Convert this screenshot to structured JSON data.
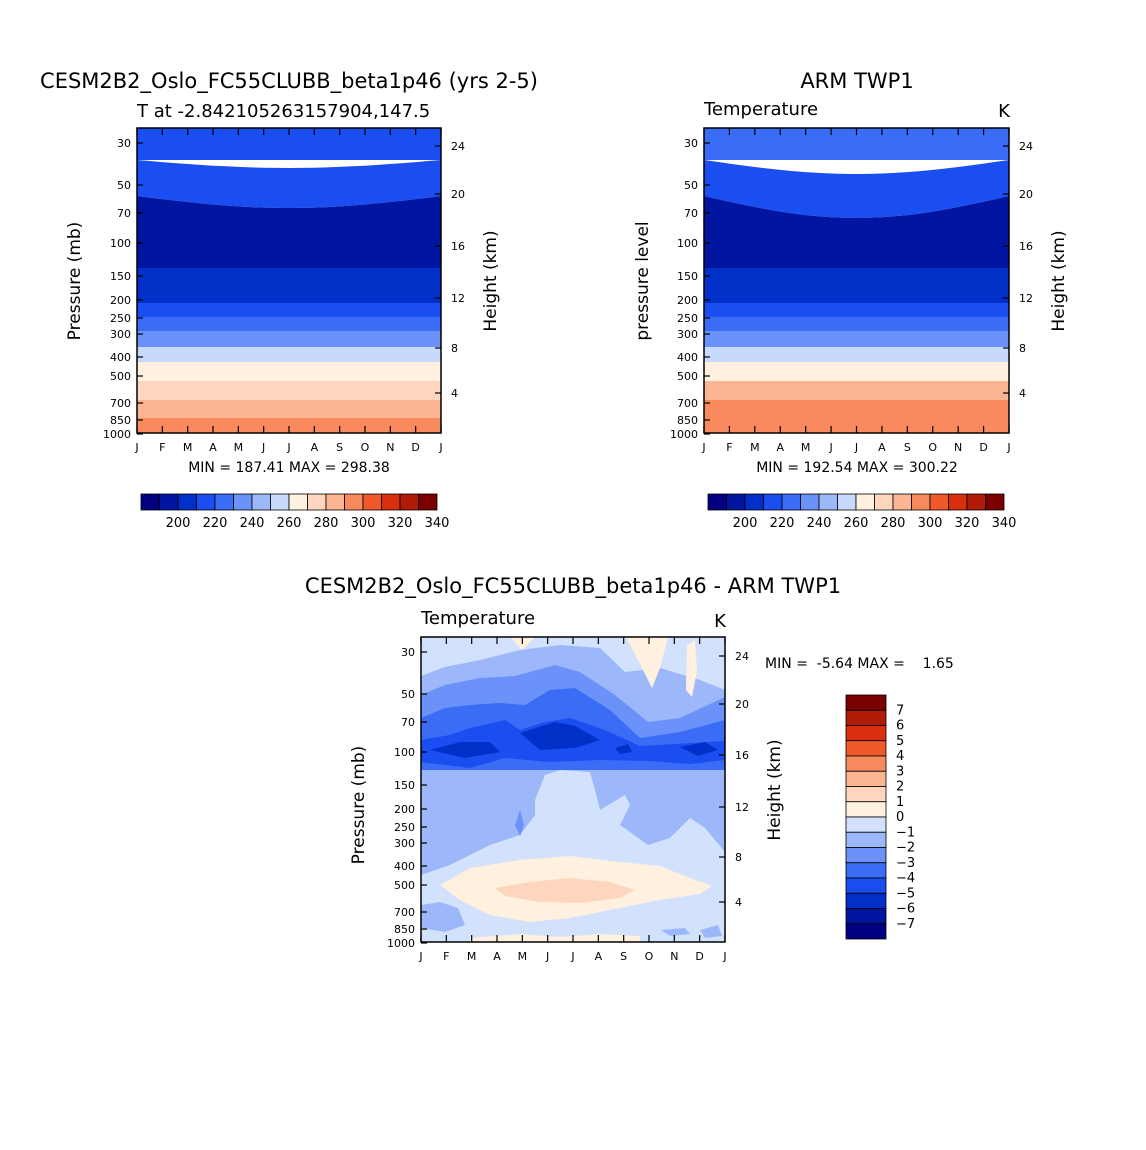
{
  "colors": {
    "temp_scale": [
      "#000080",
      "#0016a0",
      "#0030c8",
      "#1a4ef0",
      "#3a6cf6",
      "#6a92f8",
      "#9cb8fb",
      "#c8dafc",
      "#fff0e0",
      "#fdd6bd",
      "#fbb593",
      "#f88a5e",
      "#f05a2a",
      "#d8300e",
      "#b01a06",
      "#7a0000"
    ],
    "diff_scale": [
      "#000080",
      "#0016a0",
      "#0030c8",
      "#1a4ef0",
      "#3a6cf6",
      "#6a92f8",
      "#9cb8fb",
      "#d2e2fc",
      "#fff0e0",
      "#fdd6bd",
      "#fbb593",
      "#f88a5e",
      "#f05a2a",
      "#d8300e",
      "#b01a06",
      "#7a0000"
    ]
  },
  "chart_data": [
    {
      "type": "heatmap",
      "title": "CESM2B2_Oslo_FC55CLUBB_beta1p46 (yrs 2-5)",
      "subtitle": "T at -2.842105263157904,147.5",
      "ylabel": "Pressure (mb)",
      "ylabel_right": "Height (km)",
      "x_ticks": [
        "J",
        "F",
        "M",
        "A",
        "M",
        "J",
        "J",
        "A",
        "S",
        "O",
        "N",
        "D",
        "J"
      ],
      "y_ticks": [
        "30",
        "50",
        "70",
        "100",
        "150",
        "200",
        "250",
        "300",
        "400",
        "500",
        "700",
        "850",
        "1000"
      ],
      "y_ticks_right": [
        "24",
        "20",
        "16",
        "12",
        "8",
        "4"
      ],
      "minmax": "MIN = 187.41 MAX = 298.38",
      "colorbar_labels": [
        "200",
        "220",
        "240",
        "260",
        "280",
        "300",
        "320",
        "340"
      ],
      "levels_pressure_mb": [
        30,
        50,
        70,
        100,
        150,
        200,
        250,
        300,
        400,
        500,
        700,
        850,
        1000
      ],
      "temperature_profile_K": [
        218,
        212,
        197,
        190,
        200,
        214,
        226,
        236,
        252,
        264,
        278,
        288,
        296
      ]
    },
    {
      "type": "heatmap",
      "title": "ARM TWP1",
      "subtitle": "Temperature",
      "unit": "K",
      "ylabel": "pressure level",
      "ylabel_right": "Height (km)",
      "x_ticks": [
        "J",
        "F",
        "M",
        "A",
        "M",
        "J",
        "J",
        "A",
        "S",
        "O",
        "N",
        "D",
        "J"
      ],
      "y_ticks": [
        "30",
        "50",
        "70",
        "100",
        "150",
        "200",
        "250",
        "300",
        "400",
        "500",
        "700",
        "850",
        "1000"
      ],
      "y_ticks_right": [
        "24",
        "20",
        "16",
        "12",
        "8",
        "4"
      ],
      "minmax": "MIN = 192.54 MAX = 300.22",
      "colorbar_labels": [
        "200",
        "220",
        "240",
        "260",
        "280",
        "300",
        "320",
        "340"
      ],
      "levels_pressure_mb": [
        30,
        50,
        70,
        100,
        150,
        200,
        250,
        300,
        400,
        500,
        700,
        850,
        1000
      ],
      "temperature_profile_K": [
        220,
        213,
        198,
        192,
        202,
        215,
        228,
        238,
        254,
        266,
        280,
        290,
        299
      ]
    },
    {
      "type": "heatmap",
      "title": "CESM2B2_Oslo_FC55CLUBB_beta1p46 - ARM TWP1",
      "subtitle": "Temperature",
      "unit": "K",
      "ylabel": "Pressure (mb)",
      "ylabel_right": "Height (km)",
      "x_ticks": [
        "J",
        "F",
        "M",
        "A",
        "M",
        "J",
        "J",
        "A",
        "S",
        "O",
        "N",
        "D",
        "J"
      ],
      "y_ticks": [
        "30",
        "50",
        "70",
        "100",
        "150",
        "200",
        "250",
        "300",
        "400",
        "500",
        "700",
        "850",
        "1000"
      ],
      "y_ticks_right": [
        "24",
        "20",
        "16",
        "12",
        "8",
        "4"
      ],
      "minmax": "MIN =  -5.64 MAX =    1.65",
      "colorbar_labels": [
        "7",
        "6",
        "5",
        "4",
        "3",
        "2",
        "1",
        "0",
        "-1",
        "-2",
        "-3",
        "-4",
        "-5",
        "-6",
        "-7"
      ]
    }
  ]
}
